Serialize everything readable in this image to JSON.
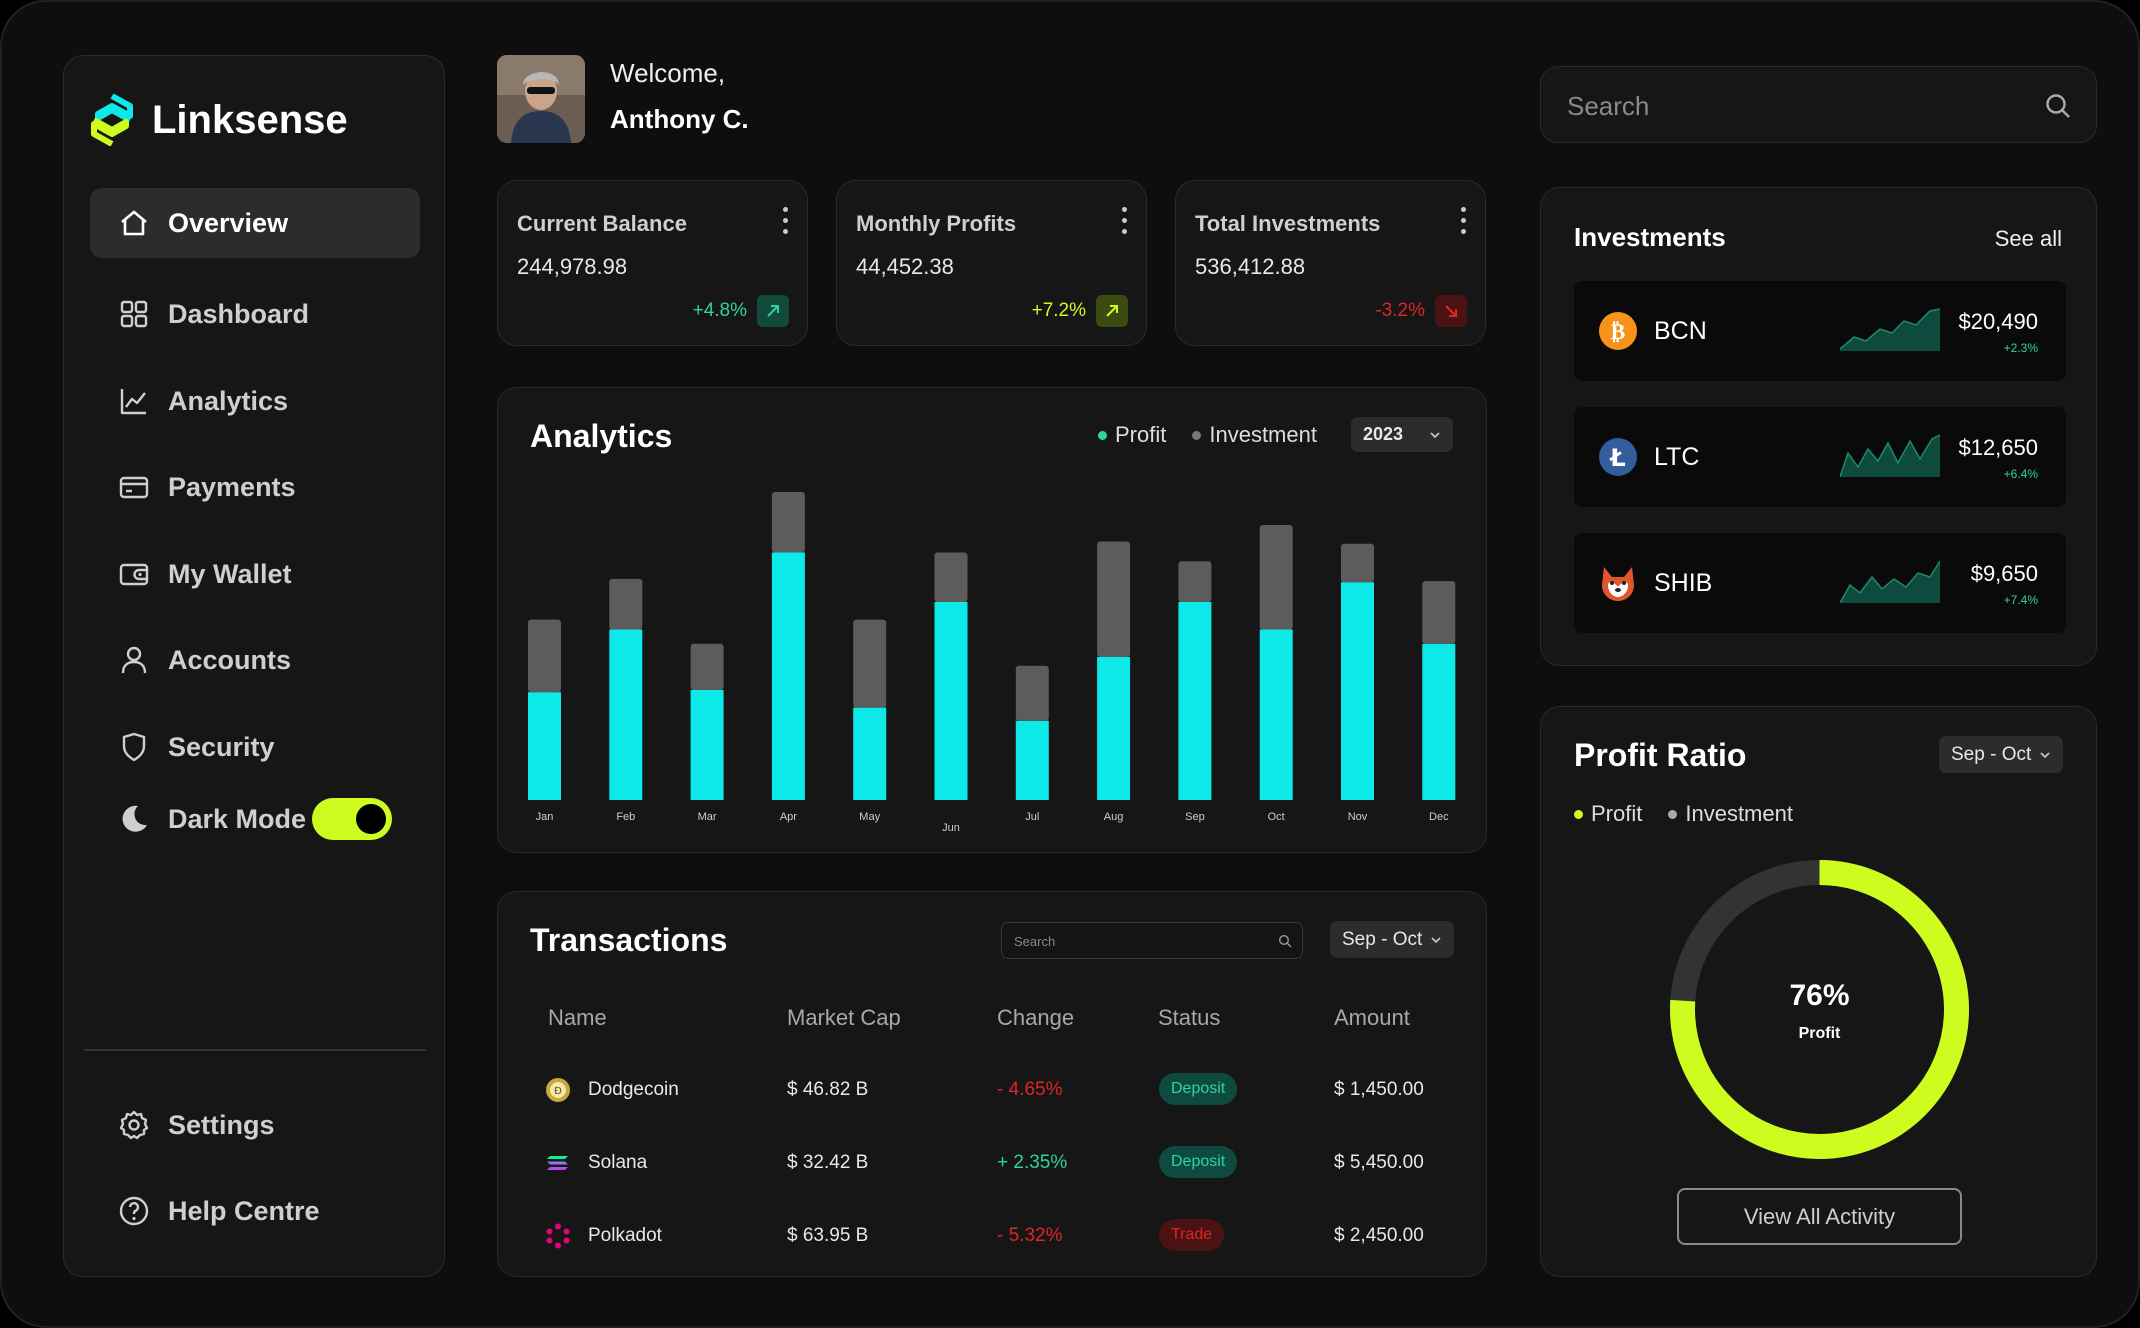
{
  "brand": {
    "name": "Linksense"
  },
  "sidebar": {
    "items": [
      {
        "label": "Overview"
      },
      {
        "label": "Dashboard"
      },
      {
        "label": "Analytics"
      },
      {
        "label": "Payments"
      },
      {
        "label": "My Wallet"
      },
      {
        "label": "Accounts"
      },
      {
        "label": "Security"
      },
      {
        "label": "Dark Mode"
      }
    ],
    "bottom": [
      {
        "label": "Settings"
      },
      {
        "label": "Help Centre"
      }
    ]
  },
  "header": {
    "welcome": "Welcome,",
    "user": "Anthony C."
  },
  "search": {
    "placeholder": "Search"
  },
  "stats": [
    {
      "label": "Current Balance",
      "value": "244,978.98",
      "change": "+4.8%",
      "color": "#2ed3a3"
    },
    {
      "label": "Monthly Profits",
      "value": "44,452.38",
      "change": "+7.2%",
      "color": "#cdfc1e"
    },
    {
      "label": "Total Investments",
      "value": "536,412.88",
      "change": "-3.2%",
      "color": "#e02424"
    }
  ],
  "analytics": {
    "title": "Analytics",
    "legend": {
      "profit": "Profit",
      "investment": "Investment"
    },
    "year": "2023"
  },
  "chart_data": {
    "type": "bar",
    "stacked": true,
    "categories": [
      "Jan",
      "Feb",
      "Mar",
      "Apr",
      "May",
      "Jun",
      "Jul",
      "Aug",
      "Sep",
      "Oct",
      "Nov",
      "Dec"
    ],
    "series": [
      {
        "name": "Profit",
        "color": "#0de8e8",
        "values": [
          98,
          155,
          100,
          225,
          84,
          180,
          72,
          130,
          180,
          155,
          198,
          142
        ]
      },
      {
        "name": "Investment",
        "color": "#5c5c5c",
        "values": [
          66,
          46,
          42,
          55,
          80,
          45,
          50,
          105,
          37,
          95,
          35,
          57
        ]
      }
    ],
    "ylim": [
      0,
      300
    ],
    "grid": false
  },
  "transactions": {
    "title": "Transactions",
    "search_placeholder": "Search",
    "range": "Sep - Oct",
    "columns": [
      "Name",
      "Market Cap",
      "Change",
      "Status",
      "Amount"
    ],
    "rows": [
      {
        "name": "Dodgecoin",
        "cap": "$ 46.82 B",
        "change": "- 4.65%",
        "status": "Deposit",
        "amount": "$ 1,450.00"
      },
      {
        "name": "Solana",
        "cap": "$ 32.42 B",
        "change": "+ 2.35%",
        "status": "Deposit",
        "amount": "$ 5,450.00"
      },
      {
        "name": "Polkadot",
        "cap": "$ 63.95 B",
        "change": "- 5.32%",
        "status": "Trade",
        "amount": "$ 2,450.00"
      }
    ]
  },
  "investments": {
    "title": "Investments",
    "see_all": "See all",
    "items": [
      {
        "symbol": "BCN",
        "price": "$20,490",
        "pct": "+2.3%",
        "icon": "bitcoin-icon"
      },
      {
        "symbol": "LTC",
        "price": "$12,650",
        "pct": "+6.4%",
        "icon": "litecoin-icon"
      },
      {
        "symbol": "SHIB",
        "price": "$9,650",
        "pct": "+7.4%",
        "icon": "shiba-icon"
      }
    ]
  },
  "profit_ratio": {
    "title": "Profit Ratio",
    "range": "Sep - Oct",
    "legend": {
      "profit": "Profit",
      "investment": "Investment"
    },
    "percent": 76,
    "percent_label": "76%",
    "center_label": "Profit",
    "button": "View All Activity"
  },
  "colors": {
    "accent": "#cdfc1e",
    "cyan": "#0de8e8",
    "green": "#2ed3a3",
    "red": "#e02424"
  }
}
